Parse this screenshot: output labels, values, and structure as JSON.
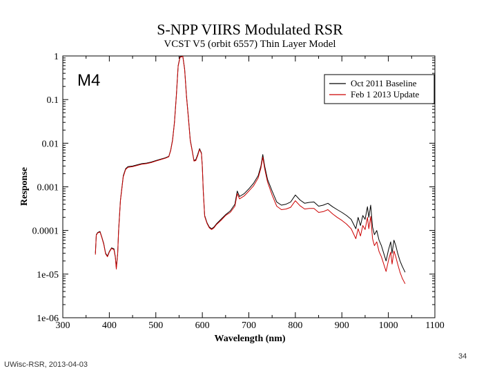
{
  "chart_data": {
    "type": "line",
    "title": "S-NPP VIIRS Modulated RSR",
    "subtitle": "VCST V5 (orbit 6557) Thin Layer Model",
    "panel_label": "M4",
    "xlabel": "Wavelength (nm)",
    "ylabel": "Response",
    "xscale": "linear",
    "yscale": "log",
    "xlim": [
      300,
      1100
    ],
    "ylim": [
      1e-06,
      1
    ],
    "x_ticks": [
      300,
      400,
      500,
      600,
      700,
      800,
      900,
      1000,
      1100
    ],
    "x_tick_labels": [
      "300",
      "400",
      "500",
      "600",
      "700",
      "800",
      "900",
      "1000",
      "1100"
    ],
    "y_ticks": [
      1e-06,
      1e-05,
      0.0001,
      0.001,
      0.01,
      0.1,
      1
    ],
    "y_tick_labels": [
      "1e-06",
      "1e-05",
      "0.0001",
      "0.001",
      "0.01",
      "0.1",
      "1"
    ],
    "legend_position": "top-right",
    "series": [
      {
        "name": "Oct 2011 Baseline",
        "color": "#000000",
        "points": [
          [
            370,
            3e-05
          ],
          [
            372,
            8e-05
          ],
          [
            375,
            9e-05
          ],
          [
            380,
            9.5e-05
          ],
          [
            384,
            7e-05
          ],
          [
            388,
            5e-05
          ],
          [
            392,
            3e-05
          ],
          [
            396,
            2.6e-05
          ],
          [
            400,
            3.3e-05
          ],
          [
            405,
            4e-05
          ],
          [
            410,
            3.8e-05
          ],
          [
            413,
            2.5e-05
          ],
          [
            415,
            1.4e-05
          ],
          [
            418,
            3e-05
          ],
          [
            420,
            0.0001
          ],
          [
            424,
            0.0005
          ],
          [
            430,
            0.0018
          ],
          [
            435,
            0.0026
          ],
          [
            440,
            0.0029
          ],
          [
            450,
            0.003
          ],
          [
            460,
            0.0032
          ],
          [
            470,
            0.0034
          ],
          [
            480,
            0.0035
          ],
          [
            490,
            0.0037
          ],
          [
            500,
            0.004
          ],
          [
            510,
            0.0043
          ],
          [
            520,
            0.0046
          ],
          [
            528,
            0.005
          ],
          [
            532,
            0.007
          ],
          [
            536,
            0.012
          ],
          [
            540,
            0.03
          ],
          [
            544,
            0.12
          ],
          [
            548,
            0.6
          ],
          [
            552,
            0.95
          ],
          [
            558,
            1.0
          ],
          [
            562,
            0.5
          ],
          [
            566,
            0.12
          ],
          [
            570,
            0.04
          ],
          [
            574,
            0.012
          ],
          [
            578,
            0.007
          ],
          [
            582,
            0.004
          ],
          [
            586,
            0.0042
          ],
          [
            590,
            0.0055
          ],
          [
            594,
            0.0075
          ],
          [
            598,
            0.006
          ],
          [
            600,
            0.003
          ],
          [
            602,
            0.0008
          ],
          [
            605,
            0.00022
          ],
          [
            610,
            0.00015
          ],
          [
            615,
            0.00012
          ],
          [
            620,
            0.00011
          ],
          [
            625,
            0.00012
          ],
          [
            630,
            0.00014
          ],
          [
            640,
            0.00018
          ],
          [
            650,
            0.00023
          ],
          [
            660,
            0.00028
          ],
          [
            670,
            0.0004
          ],
          [
            675,
            0.0008
          ],
          [
            680,
            0.0006
          ],
          [
            690,
            0.0007
          ],
          [
            700,
            0.0009
          ],
          [
            710,
            0.0012
          ],
          [
            720,
            0.0018
          ],
          [
            726,
            0.003
          ],
          [
            730,
            0.0055
          ],
          [
            734,
            0.003
          ],
          [
            740,
            0.0015
          ],
          [
            750,
            0.0008
          ],
          [
            760,
            0.00045
          ],
          [
            770,
            0.00038
          ],
          [
            780,
            0.0004
          ],
          [
            790,
            0.00045
          ],
          [
            800,
            0.00065
          ],
          [
            810,
            0.0005
          ],
          [
            820,
            0.00042
          ],
          [
            830,
            0.00044
          ],
          [
            840,
            0.00045
          ],
          [
            850,
            0.00036
          ],
          [
            860,
            0.00038
          ],
          [
            870,
            0.00042
          ],
          [
            880,
            0.00035
          ],
          [
            890,
            0.0003
          ],
          [
            900,
            0.00026
          ],
          [
            910,
            0.00022
          ],
          [
            920,
            0.00018
          ],
          [
            930,
            0.00011
          ],
          [
            935,
            0.0002
          ],
          [
            940,
            0.00013
          ],
          [
            945,
            0.00022
          ],
          [
            950,
            0.00018
          ],
          [
            955,
            0.00035
          ],
          [
            958,
            0.0002
          ],
          [
            962,
            0.00038
          ],
          [
            966,
            0.00012
          ],
          [
            970,
            8e-05
          ],
          [
            975,
            0.0001
          ],
          [
            980,
            6e-05
          ],
          [
            985,
            4.5e-05
          ],
          [
            990,
            3e-05
          ],
          [
            995,
            2e-05
          ],
          [
            1000,
            3.5e-05
          ],
          [
            1005,
            5.5e-05
          ],
          [
            1008,
            3e-05
          ],
          [
            1012,
            6e-05
          ],
          [
            1016,
            4.5e-05
          ],
          [
            1020,
            3e-05
          ],
          [
            1025,
            2e-05
          ],
          [
            1030,
            1.5e-05
          ],
          [
            1036,
            1.1e-05
          ]
        ]
      },
      {
        "name": "Feb 1 2013 Update",
        "color": "#cc0000",
        "points": [
          [
            370,
            2.8e-05
          ],
          [
            372,
            7.8e-05
          ],
          [
            375,
            8.8e-05
          ],
          [
            380,
            9.2e-05
          ],
          [
            384,
            6.8e-05
          ],
          [
            388,
            4.8e-05
          ],
          [
            392,
            2.9e-05
          ],
          [
            396,
            2.5e-05
          ],
          [
            400,
            3.2e-05
          ],
          [
            405,
            3.9e-05
          ],
          [
            410,
            3.6e-05
          ],
          [
            413,
            2.4e-05
          ],
          [
            415,
            1.3e-05
          ],
          [
            418,
            2.9e-05
          ],
          [
            420,
            9.5e-05
          ],
          [
            424,
            0.00048
          ],
          [
            430,
            0.0017
          ],
          [
            435,
            0.0025
          ],
          [
            440,
            0.0028
          ],
          [
            450,
            0.0029
          ],
          [
            460,
            0.0031
          ],
          [
            470,
            0.0033
          ],
          [
            480,
            0.0034
          ],
          [
            490,
            0.0036
          ],
          [
            500,
            0.0039
          ],
          [
            510,
            0.0042
          ],
          [
            520,
            0.0045
          ],
          [
            528,
            0.0049
          ],
          [
            532,
            0.0068
          ],
          [
            536,
            0.0115
          ],
          [
            540,
            0.029
          ],
          [
            544,
            0.115
          ],
          [
            548,
            0.58
          ],
          [
            552,
            0.93
          ],
          [
            558,
            0.98
          ],
          [
            562,
            0.48
          ],
          [
            566,
            0.115
          ],
          [
            570,
            0.038
          ],
          [
            574,
            0.0115
          ],
          [
            578,
            0.0068
          ],
          [
            582,
            0.0039
          ],
          [
            586,
            0.004
          ],
          [
            590,
            0.0052
          ],
          [
            594,
            0.0072
          ],
          [
            598,
            0.0058
          ],
          [
            600,
            0.0029
          ],
          [
            602,
            0.00078
          ],
          [
            605,
            0.00021
          ],
          [
            610,
            0.000145
          ],
          [
            615,
            0.000115
          ],
          [
            620,
            0.000105
          ],
          [
            625,
            0.000115
          ],
          [
            630,
            0.000135
          ],
          [
            640,
            0.00017
          ],
          [
            650,
            0.00022
          ],
          [
            660,
            0.00026
          ],
          [
            670,
            0.00036
          ],
          [
            675,
            0.0007
          ],
          [
            680,
            0.00053
          ],
          [
            690,
            0.00062
          ],
          [
            700,
            0.0008
          ],
          [
            710,
            0.00105
          ],
          [
            720,
            0.0016
          ],
          [
            726,
            0.0027
          ],
          [
            730,
            0.0048
          ],
          [
            734,
            0.0026
          ],
          [
            740,
            0.0013
          ],
          [
            750,
            0.00065
          ],
          [
            760,
            0.00036
          ],
          [
            770,
            0.0003
          ],
          [
            780,
            0.00031
          ],
          [
            790,
            0.00034
          ],
          [
            800,
            0.00048
          ],
          [
            810,
            0.00037
          ],
          [
            820,
            0.00031
          ],
          [
            830,
            0.00032
          ],
          [
            840,
            0.00032
          ],
          [
            850,
            0.00026
          ],
          [
            860,
            0.00027
          ],
          [
            870,
            0.0003
          ],
          [
            880,
            0.00024
          ],
          [
            890,
            0.0002
          ],
          [
            900,
            0.00017
          ],
          [
            910,
            0.00014
          ],
          [
            920,
            0.00011
          ],
          [
            930,
            6.5e-05
          ],
          [
            935,
            0.00011
          ],
          [
            940,
            7.5e-05
          ],
          [
            945,
            0.00013
          ],
          [
            950,
            0.000105
          ],
          [
            955,
            0.0002
          ],
          [
            958,
            0.00011
          ],
          [
            962,
            0.00021
          ],
          [
            966,
            6.5e-05
          ],
          [
            970,
            4.5e-05
          ],
          [
            975,
            5.5e-05
          ],
          [
            980,
            3.3e-05
          ],
          [
            985,
            2.5e-05
          ],
          [
            990,
            1.7e-05
          ],
          [
            995,
            1.15e-05
          ],
          [
            1000,
            2e-05
          ],
          [
            1005,
            3.2e-05
          ],
          [
            1008,
            1.7e-05
          ],
          [
            1012,
            3.4e-05
          ],
          [
            1016,
            2.5e-05
          ],
          [
            1020,
            1.7e-05
          ],
          [
            1025,
            1.1e-05
          ],
          [
            1030,
            8e-06
          ],
          [
            1036,
            6e-06
          ]
        ]
      }
    ]
  },
  "footer": {
    "source": "UWisc-RSR, 2013-04-03",
    "page_number": "34"
  }
}
